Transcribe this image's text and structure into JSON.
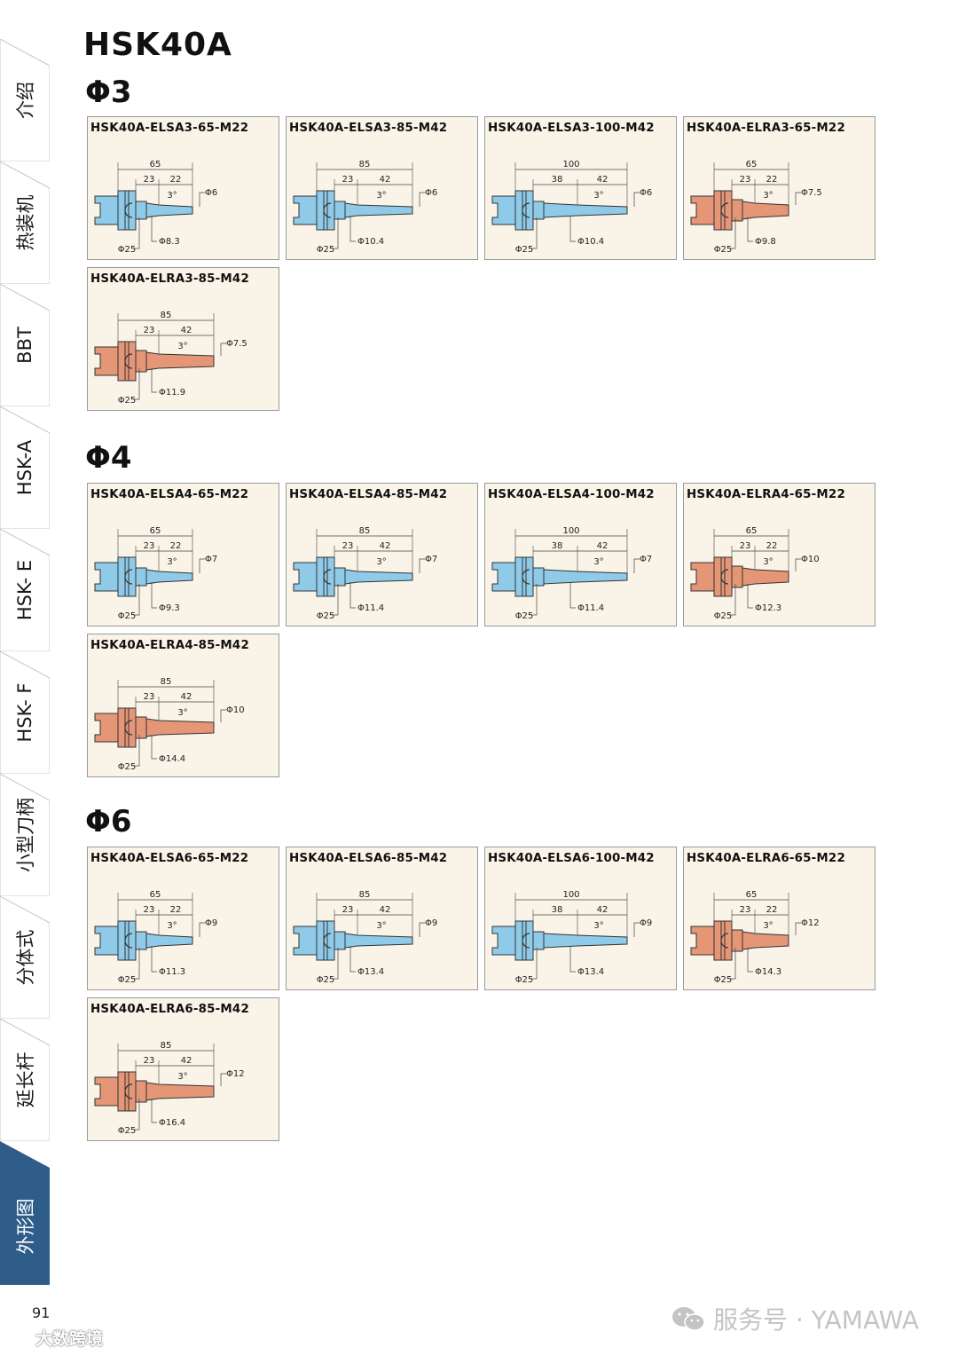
{
  "page_title": "HSK40A",
  "side_tabs": [
    {
      "label": "介绍",
      "active": false
    },
    {
      "label": "热装机",
      "active": false
    },
    {
      "label": "BBT",
      "active": false
    },
    {
      "label": "HSK-A",
      "active": false
    },
    {
      "label": "HSK- E",
      "active": false
    },
    {
      "label": "HSK- F",
      "active": false
    },
    {
      "label": "小型刀柄",
      "active": false
    },
    {
      "label": "分体式",
      "active": false
    },
    {
      "label": "延长杆",
      "active": false
    },
    {
      "label": "外形图",
      "active": true
    }
  ],
  "colors": {
    "blue_body": "#8fcbe9",
    "red_body": "#e49677",
    "card_bg": "#faf4e8",
    "active_tab": "#2f5d8a"
  },
  "sections": [
    {
      "title": "Φ3",
      "items": [
        {
          "name": "HSK40A-ELSA3-65-M22",
          "color": "blue",
          "length": "65",
          "d1": "23",
          "d2": "22",
          "angle": "3°",
          "tip": "Φ6",
          "body": "Φ8.3",
          "flange": "Φ25"
        },
        {
          "name": "HSK40A-ELSA3-85-M42",
          "color": "blue",
          "length": "85",
          "d1": "23",
          "d2": "42",
          "angle": "3°",
          "tip": "Φ6",
          "body": "Φ10.4",
          "flange": "Φ25"
        },
        {
          "name": "HSK40A-ELSA3-100-M42",
          "color": "blue",
          "length": "100",
          "d1": "38",
          "d2": "42",
          "angle": "3°",
          "tip": "Φ6",
          "body": "Φ10.4",
          "flange": "Φ25"
        },
        {
          "name": "HSK40A-ELRA3-65-M22",
          "color": "red",
          "length": "65",
          "d1": "23",
          "d2": "22",
          "angle": "3°",
          "tip": "Φ7.5",
          "body": "Φ9.8",
          "flange": "Φ25"
        },
        {
          "name": "HSK40A-ELRA3-85-M42",
          "color": "red",
          "length": "85",
          "d1": "23",
          "d2": "42",
          "angle": "3°",
          "tip": "Φ7.5",
          "body": "Φ11.9",
          "flange": "Φ25"
        }
      ]
    },
    {
      "title": "Φ4",
      "items": [
        {
          "name": "HSK40A-ELSA4-65-M22",
          "color": "blue",
          "length": "65",
          "d1": "23",
          "d2": "22",
          "angle": "3°",
          "tip": "Φ7",
          "body": "Φ9.3",
          "flange": "Φ25"
        },
        {
          "name": "HSK40A-ELSA4-85-M42",
          "color": "blue",
          "length": "85",
          "d1": "23",
          "d2": "42",
          "angle": "3°",
          "tip": "Φ7",
          "body": "Φ11.4",
          "flange": "Φ25"
        },
        {
          "name": "HSK40A-ELSA4-100-M42",
          "color": "blue",
          "length": "100",
          "d1": "38",
          "d2": "42",
          "angle": "3°",
          "tip": "Φ7",
          "body": "Φ11.4",
          "flange": "Φ25"
        },
        {
          "name": "HSK40A-ELRA4-65-M22",
          "color": "red",
          "length": "65",
          "d1": "23",
          "d2": "22",
          "angle": "3°",
          "tip": "Φ10",
          "body": "Φ12.3",
          "flange": "Φ25"
        },
        {
          "name": "HSK40A-ELRA4-85-M42",
          "color": "red",
          "length": "85",
          "d1": "23",
          "d2": "42",
          "angle": "3°",
          "tip": "Φ10",
          "body": "Φ14.4",
          "flange": "Φ25"
        }
      ]
    },
    {
      "title": "Φ6",
      "items": [
        {
          "name": "HSK40A-ELSA6-65-M22",
          "color": "blue",
          "length": "65",
          "d1": "23",
          "d2": "22",
          "angle": "3°",
          "tip": "Φ9",
          "body": "Φ11.3",
          "flange": "Φ25"
        },
        {
          "name": "HSK40A-ELSA6-85-M42",
          "color": "blue",
          "length": "85",
          "d1": "23",
          "d2": "42",
          "angle": "3°",
          "tip": "Φ9",
          "body": "Φ13.4",
          "flange": "Φ25"
        },
        {
          "name": "HSK40A-ELSA6-100-M42",
          "color": "blue",
          "length": "100",
          "d1": "38",
          "d2": "42",
          "angle": "3°",
          "tip": "Φ9",
          "body": "Φ13.4",
          "flange": "Φ25"
        },
        {
          "name": "HSK40A-ELRA6-65-M22",
          "color": "red",
          "length": "65",
          "d1": "23",
          "d2": "22",
          "angle": "3°",
          "tip": "Φ12",
          "body": "Φ14.3",
          "flange": "Φ25"
        },
        {
          "name": "HSK40A-ELRA6-85-M42",
          "color": "red",
          "length": "85",
          "d1": "23",
          "d2": "42",
          "angle": "3°",
          "tip": "Φ12",
          "body": "Φ16.4",
          "flange": "Φ25"
        }
      ]
    }
  ],
  "page_number": "91",
  "watermark_left": "大数跨境",
  "watermark_right": "服务号 · YAMAWA"
}
